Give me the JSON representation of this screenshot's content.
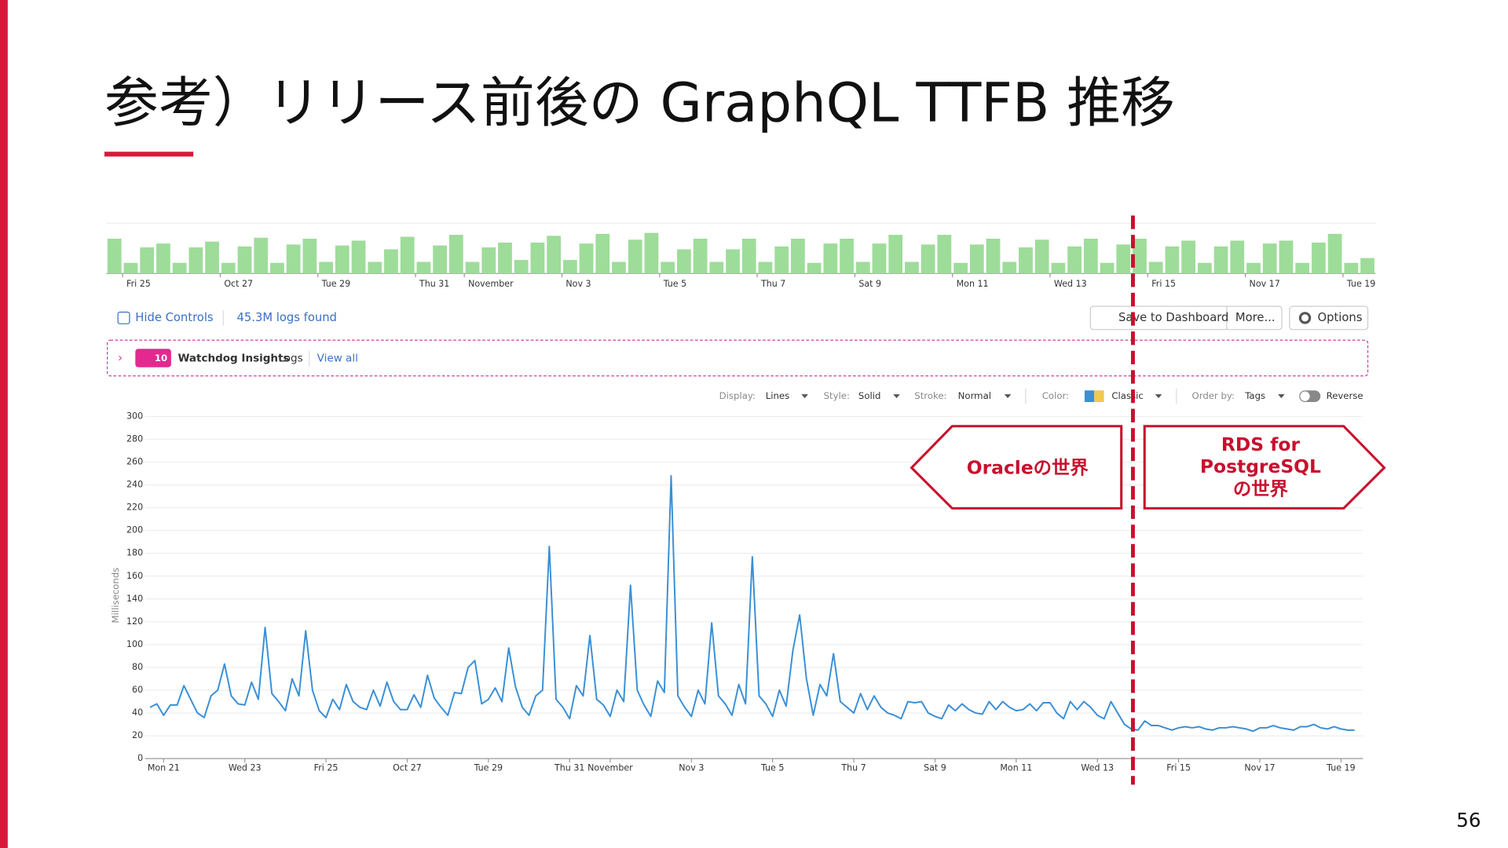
{
  "title": "参考）リリース前後の GraphQL TTFB 推移",
  "page_number": "56",
  "controls": {
    "hide": "Hide Controls",
    "found": "45.3M logs found",
    "save": "Save to Dashboard",
    "more": "More...",
    "options": "Options",
    "watchdog_count": "10",
    "watchdog": "Watchdog Insights",
    "logs": "Logs",
    "view_all": "View all",
    "display_label": "Display:",
    "display": "Lines",
    "style_label": "Style:",
    "style": "Solid",
    "stroke_label": "Stroke:",
    "stroke": "Normal",
    "color_label": "Color:",
    "color": "Classic",
    "order_label": "Order by:",
    "order": "Tags",
    "reverse": "Reverse"
  },
  "annotations": {
    "left": "Oracleの世界",
    "right": [
      "RDS for",
      "PostgreSQL",
      "の世界"
    ]
  },
  "chart_data": [
    {
      "type": "histogram",
      "color": "#9edc9a",
      "bins": [
        88,
        96,
        104,
        112,
        120,
        128,
        136,
        144,
        152,
        160,
        168,
        176,
        184,
        192,
        200,
        208,
        216,
        224,
        232,
        240,
        248,
        256,
        264,
        272,
        280,
        288,
        296,
        304,
        312,
        320,
        328,
        336,
        344,
        352,
        360,
        368,
        376,
        384,
        392,
        400,
        408,
        416,
        424,
        432,
        440,
        448,
        456,
        464,
        472,
        480,
        488,
        496,
        504,
        512,
        520,
        528,
        536,
        544,
        552,
        560,
        568,
        576,
        584,
        592,
        600,
        608,
        616,
        624,
        632,
        640,
        648,
        656,
        664,
        672,
        680,
        688,
        696,
        704,
        712
      ],
      "values": [
        36,
        11,
        27,
        31,
        11,
        27,
        33,
        11,
        28,
        37,
        11,
        30,
        36,
        12,
        29,
        34,
        12,
        25,
        38,
        12,
        29,
        40,
        12,
        27,
        32,
        14,
        32,
        39,
        14,
        31,
        41,
        12,
        35,
        42,
        12,
        25,
        36,
        12,
        25,
        36,
        12,
        28,
        36,
        11,
        31,
        36,
        12,
        31,
        40,
        12,
        30,
        40,
        11,
        30,
        36,
        12,
        27,
        35,
        11,
        28,
        36,
        11,
        30,
        36,
        12,
        28,
        34,
        11,
        28,
        34,
        11,
        31,
        34,
        11,
        32,
        41,
        11,
        16
      ],
      "xlim": [
        88,
        712
      ],
      "ylim": [
        0,
        50
      ],
      "xticks": [
        {
          "value": 96,
          "label": "Fri 25"
        },
        {
          "value": 144,
          "label": "Oct 27"
        },
        {
          "value": 192,
          "label": "Tue 29"
        },
        {
          "value": 240,
          "label": "Thu 31"
        },
        {
          "value": 264,
          "label": "November"
        },
        {
          "value": 312,
          "label": "Nov 3"
        },
        {
          "value": 360,
          "label": "Tue 5"
        },
        {
          "value": 408,
          "label": "Thu 7"
        },
        {
          "value": 456,
          "label": "Sat 9"
        },
        {
          "value": 504,
          "label": "Mon 11"
        },
        {
          "value": 552,
          "label": "Wed 13"
        },
        {
          "value": 600,
          "label": "Fri 15"
        },
        {
          "value": 648,
          "label": "Nov 17"
        },
        {
          "value": 696,
          "label": "Tue 19"
        }
      ]
    },
    {
      "type": "line",
      "y_label": "Milliseconds",
      "grid": true,
      "x": [
        -8,
        -4,
        0,
        4,
        8,
        12,
        16,
        20,
        24,
        28,
        32,
        36,
        40,
        44,
        48,
        52,
        56,
        60,
        64,
        68,
        72,
        76,
        80,
        84,
        88,
        92,
        96,
        100,
        104,
        108,
        112,
        116,
        120,
        124,
        128,
        132,
        136,
        140,
        144,
        148,
        152,
        156,
        160,
        164,
        168,
        172,
        176,
        180,
        184,
        188,
        192,
        196,
        200,
        204,
        208,
        212,
        216,
        220,
        224,
        228,
        232,
        236,
        240,
        244,
        248,
        252,
        256,
        260,
        264,
        268,
        272,
        276,
        280,
        284,
        288,
        292,
        296,
        300,
        304,
        308,
        312,
        316,
        320,
        324,
        328,
        332,
        336,
        340,
        344,
        348,
        352,
        356,
        360,
        364,
        368,
        372,
        376,
        380,
        384,
        388,
        392,
        396,
        400,
        404,
        408,
        412,
        416,
        420,
        424,
        428,
        432,
        436,
        440,
        444,
        448,
        452,
        456,
        460,
        464,
        468,
        472,
        476,
        480,
        484,
        488,
        492,
        496,
        500,
        504,
        508,
        512,
        516,
        520,
        524,
        528,
        532,
        536,
        540,
        544,
        548,
        552,
        556,
        560,
        564,
        568,
        572,
        576,
        580,
        584,
        588,
        592,
        596,
        600,
        604,
        608,
        612,
        616,
        620,
        624,
        628,
        632,
        636,
        640,
        644,
        648,
        652,
        656,
        660,
        664,
        668,
        672,
        676,
        680,
        684,
        688,
        692,
        696,
        700,
        704
      ],
      "series": [
        {
          "name": "TTFB",
          "color": "#3a8fd6",
          "values": [
            45,
            48,
            38,
            47,
            47,
            64,
            52,
            40,
            36,
            55,
            60,
            83,
            55,
            48,
            47,
            67,
            52,
            115,
            57,
            50,
            42,
            70,
            55,
            112,
            60,
            42,
            36,
            52,
            43,
            65,
            50,
            45,
            43,
            60,
            46,
            67,
            50,
            43,
            43,
            56,
            45,
            73,
            53,
            45,
            38,
            58,
            57,
            80,
            86,
            48,
            52,
            62,
            50,
            97,
            63,
            45,
            38,
            55,
            60,
            186,
            52,
            45,
            35,
            64,
            55,
            108,
            52,
            47,
            37,
            60,
            50,
            152,
            60,
            47,
            37,
            68,
            58,
            248,
            55,
            45,
            37,
            60,
            48,
            119,
            55,
            48,
            38,
            65,
            48,
            177,
            55,
            48,
            37,
            60,
            46,
            95,
            126,
            70,
            38,
            65,
            55,
            92,
            50,
            45,
            40,
            57,
            43,
            55,
            45,
            40,
            38,
            35,
            50,
            49,
            50,
            40,
            37,
            35,
            47,
            42,
            48,
            43,
            40,
            39,
            50,
            43,
            50,
            45,
            42,
            43,
            48,
            42,
            49,
            49,
            40,
            35,
            50,
            43,
            50,
            45,
            38,
            35,
            50,
            40,
            30,
            26,
            25,
            33,
            29,
            29,
            27,
            25,
            27,
            28,
            27,
            28,
            26,
            25,
            27,
            27,
            28,
            27,
            26,
            24,
            27,
            27,
            29,
            27,
            26,
            25,
            28,
            28,
            30,
            27,
            26,
            28,
            26,
            25,
            25
          ]
        }
      ],
      "xlim": [
        -11,
        709
      ],
      "ylim": [
        0,
        300
      ],
      "yticks": [
        0,
        20,
        40,
        60,
        80,
        100,
        120,
        140,
        160,
        180,
        200,
        220,
        240,
        260,
        280,
        300
      ],
      "xticks": [
        {
          "value": 0,
          "label": "Mon 21"
        },
        {
          "value": 48,
          "label": "Wed 23"
        },
        {
          "value": 96,
          "label": "Fri 25"
        },
        {
          "value": 144,
          "label": "Oct 27"
        },
        {
          "value": 192,
          "label": "Tue 29"
        },
        {
          "value": 240,
          "label": "Thu 31"
        },
        {
          "value": 264,
          "label": "November"
        },
        {
          "value": 312,
          "label": "Nov 3"
        },
        {
          "value": 360,
          "label": "Tue 5"
        },
        {
          "value": 408,
          "label": "Thu 7"
        },
        {
          "value": 456,
          "label": "Sat 9"
        },
        {
          "value": 504,
          "label": "Mon 11"
        },
        {
          "value": 552,
          "label": "Wed 13"
        },
        {
          "value": 600,
          "label": "Fri 15"
        },
        {
          "value": 648,
          "label": "Nov 17"
        },
        {
          "value": 696,
          "label": "Tue 19"
        }
      ]
    }
  ]
}
